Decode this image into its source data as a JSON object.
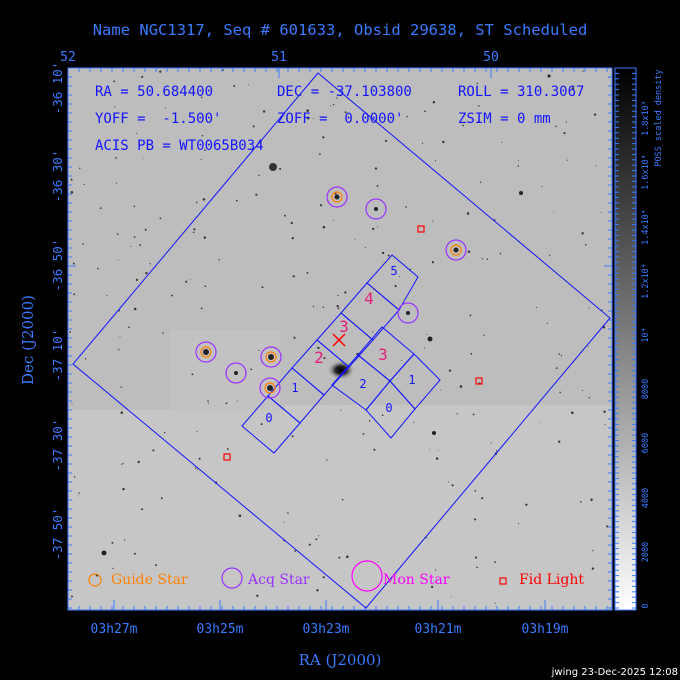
{
  "title": "Name NGC1317, Seq # 601633, Obsid 29638, ST Scheduled",
  "info": {
    "ra": "RA = 50.684400",
    "dec": "DEC = -37.103800",
    "roll": "ROLL = 310.3067",
    "yoff": "YOFF =  -1.500'",
    "zoff": "ZOFF =  0.0000'",
    "zsim": "ZSIM = 0 mm",
    "acis": "ACIS PB = WT0065B034"
  },
  "footer": "jwing 23-Dec-2025 12:08",
  "colors": {
    "background": "#000000",
    "axis": "#3a7bff",
    "overlay": "#1414ff",
    "guide": "#ff8000",
    "acq": "#9b30ff",
    "mon": "#ff00ff",
    "fid": "#ff0000",
    "ccd_label": "#e0207a"
  },
  "chart_data": {
    "type": "scatter",
    "title": "Name NGC1317, Seq # 601633, Obsid 29638, ST Scheduled",
    "xlabel": "RA (J2000)",
    "ylabel": "Dec (J2000)",
    "x_bottom_ticks": [
      "03h27m",
      "03h25m",
      "03h23m",
      "03h21m",
      "03h19m"
    ],
    "x_top_ticks": [
      "52",
      "51",
      "50"
    ],
    "y_ticks": [
      "-36 10'",
      "-36 30'",
      "-36 50'",
      "-37 10'",
      "-37 30'",
      "-37 50'"
    ],
    "colorbar": {
      "label": "POSS scaled density",
      "ticks": [
        "0",
        "2000",
        "4000",
        "6000",
        "8000",
        "10⁴",
        "1.2x10⁴",
        "1.4x10⁴",
        "1.6x10⁴",
        "1.8x10⁴"
      ]
    },
    "legend": {
      "placement": "bottom",
      "items": [
        {
          "label": "Guide Star",
          "symbol": "small-circle",
          "color": "#ff8000"
        },
        {
          "label": "Acq Star",
          "symbol": "medium-circle",
          "color": "#9b30ff"
        },
        {
          "label": "Mon Star",
          "symbol": "large-circle",
          "color": "#ff00ff"
        },
        {
          "label": "Fid Light",
          "symbol": "square",
          "color": "#ff0000"
        }
      ]
    },
    "target": {
      "ra_deg": 50.6844,
      "dec_deg": -37.1038,
      "marker": "x"
    },
    "ccd_labels": [
      "0",
      "1",
      "2",
      "3",
      "4",
      "5",
      "0",
      "1",
      "2",
      "3"
    ]
  }
}
